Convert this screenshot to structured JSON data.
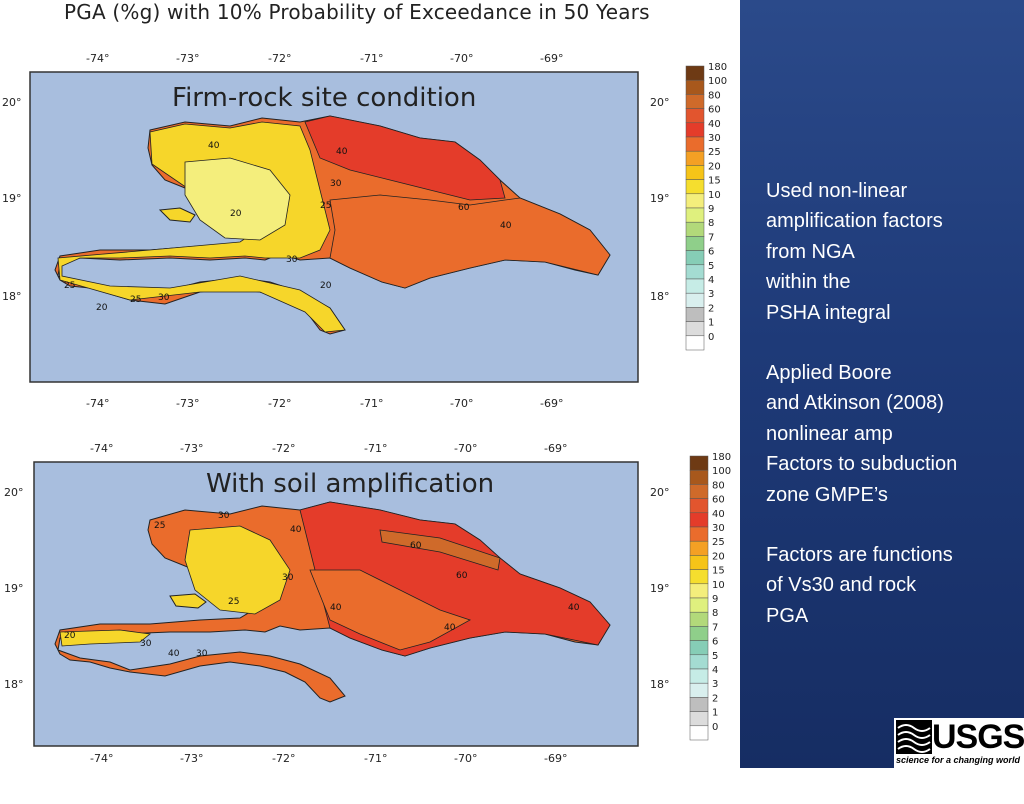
{
  "title": "PGA (%g) with 10% Probability of Exceedance in 50 Years",
  "maps": [
    {
      "label": "Firm-rock site condition",
      "contour_labels": [
        "40",
        "30",
        "25",
        "20",
        "60",
        "40",
        "30",
        "20",
        "25",
        "40",
        "25",
        "30",
        "20"
      ]
    },
    {
      "label": "With soil amplification",
      "contour_labels": [
        "30",
        "25",
        "40",
        "60",
        "60",
        "30",
        "25",
        "40",
        "40",
        "20",
        "30",
        "40",
        "30",
        "40"
      ]
    }
  ],
  "lon_ticks": [
    "-74°",
    "-73°",
    "-72°",
    "-71°",
    "-70°",
    "-69°"
  ],
  "lat_ticks": [
    "20°",
    "19°",
    "18°"
  ],
  "colorbar": {
    "values": [
      "180",
      "100",
      "80",
      "60",
      "40",
      "30",
      "25",
      "20",
      "15",
      "10",
      "9",
      "8",
      "7",
      "6",
      "5",
      "4",
      "3",
      "2",
      "1",
      "0"
    ],
    "colors": [
      "#6e3a14",
      "#a8581c",
      "#cf6a2a",
      "#e2552e",
      "#e43c2a",
      "#ea6c2c",
      "#f4a024",
      "#f6c418",
      "#f5de2e",
      "#f4ee7c",
      "#dff07e",
      "#b2d97a",
      "#8fcf8a",
      "#86cdb6",
      "#a4dcd2",
      "#c6ece6",
      "#d9efee",
      "#bebebe",
      "#dcdcdc",
      "#ffffff"
    ]
  },
  "notes": [
    "Used non-linear\namplification factors\nfrom NGA\nwithin the\nPSHA integral",
    "Applied Boore\nand Atkinson (2008)\nnonlinear amp\nFactors to subduction\nzone GMPE’s",
    "Factors are functions\nof Vs30 and rock\nPGA"
  ],
  "logo": {
    "name": "USGS",
    "tagline": "science for a changing world"
  }
}
